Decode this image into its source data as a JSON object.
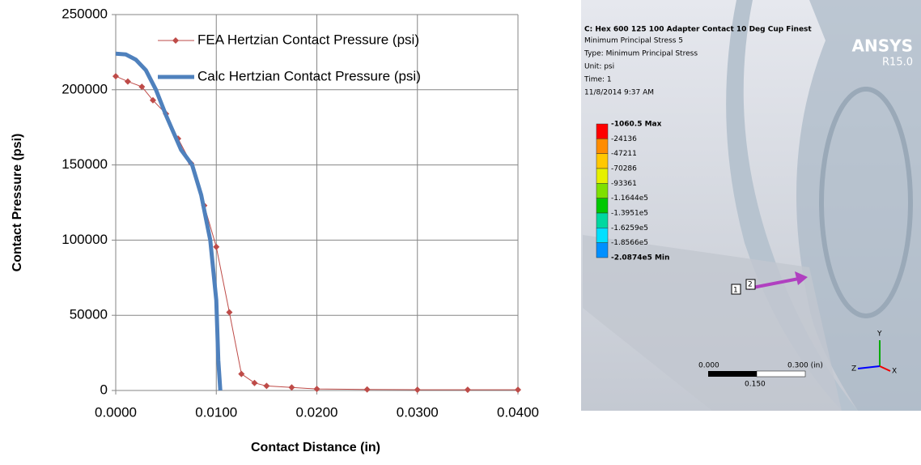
{
  "chart_data": {
    "type": "line",
    "x_label": "Contact Distance (in)",
    "y_label": "Contact Pressure (psi)",
    "xlim": [
      0,
      0.04
    ],
    "ylim": [
      0,
      250000
    ],
    "xticks": [
      {
        "value": 0,
        "label": "0.0000"
      },
      {
        "value": 0.01,
        "label": "0.0100"
      },
      {
        "value": 0.02,
        "label": "0.0200"
      },
      {
        "value": 0.03,
        "label": "0.0300"
      },
      {
        "value": 0.04,
        "label": "0.0400"
      }
    ],
    "yticks": [
      0,
      50000,
      100000,
      150000,
      200000,
      250000
    ],
    "grid": true,
    "legend": "upper right",
    "series": [
      {
        "name": "FEA Hertzian Contact Pressure (psi)",
        "color": "#be4b48",
        "marker": "diamond",
        "x": [
          0,
          0.0012,
          0.0026,
          0.0037,
          0.005,
          0.0062,
          0.0075,
          0.0088,
          0.01,
          0.0113,
          0.0125,
          0.0138,
          0.015,
          0.0175,
          0.02,
          0.025,
          0.03,
          0.035,
          0.04
        ],
        "values": [
          209000,
          205500,
          202000,
          193000,
          184000,
          167500,
          151000,
          123000,
          95500,
          52000,
          11000,
          5000,
          3000,
          2000,
          1000,
          700,
          500,
          500,
          500
        ]
      },
      {
        "name": "Calc Hertzian Contact Pressure (psi)",
        "color": "#4f81bd",
        "x": [
          0,
          0.001,
          0.002,
          0.003,
          0.004,
          0.005,
          0.0065,
          0.0076,
          0.0085,
          0.0094,
          0.01,
          0.0102,
          0.0104
        ],
        "values": [
          224000,
          223500,
          220000,
          213000,
          200000,
          183000,
          160000,
          150000,
          130000,
          100000,
          60000,
          20000,
          0
        ]
      }
    ]
  },
  "screenshot": {
    "title": "C: Hex 600 125 100 Adapter Contact 10 Deg Cup Finest",
    "lines": [
      "Minimum Principal Stress 5",
      "Type: Minimum Principal Stress",
      "Unit: psi",
      "Time: 1",
      "11/8/2014 9:37 AM"
    ],
    "legend": [
      "-1060.5 Max",
      "-24136",
      "-47211",
      "-70286",
      "-93361",
      "-1.1644e5",
      "-1.3951e5",
      "-1.6259e5",
      "-1.8566e5",
      "-2.0874e5 Min"
    ],
    "logo": "ANSYS",
    "version": "R15.0",
    "scale": {
      "start": "0.000",
      "end": "0.300 (in)",
      "mid": "0.150"
    },
    "probes": [
      "1",
      "2"
    ],
    "triad": [
      "Y",
      "Z",
      "X"
    ]
  }
}
